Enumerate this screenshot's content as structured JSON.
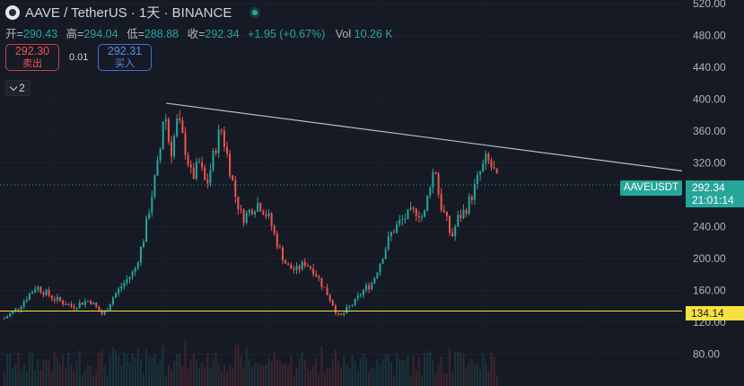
{
  "header": {
    "title": "AAVE / TetherUS · 1天 · BINANCE",
    "colors": {
      "up": "#26a69a",
      "down": "#ef5350",
      "background": "#161a25"
    }
  },
  "ohlc": {
    "open_label": "开=",
    "open": "290.43",
    "high_label": "高=",
    "high": "294.04",
    "low_label": "低=",
    "low": "288.88",
    "close_label": "收=",
    "close": "292.34",
    "change": "+1.95 (+0.67%)",
    "vol_label": "Vol",
    "vol": "10.26 K"
  },
  "trade": {
    "sell_price": "292.30",
    "sell_label": "卖出",
    "spread": "0.01",
    "buy_price": "292.31",
    "buy_label": "买入"
  },
  "indicator_toggle": {
    "count": "2"
  },
  "badges": {
    "symbol": "AAVEUSDT",
    "last_price": "292.34",
    "countdown": "21:01:14",
    "horizontal_line": "134.14"
  },
  "chart_data": {
    "type": "candlestick",
    "y_axis_ticks": [
      520,
      480,
      440,
      400,
      360,
      320,
      280,
      240,
      200,
      160,
      120,
      80
    ],
    "ylim": [
      70,
      530
    ],
    "last_price": 292.34,
    "horizontal_line": 134.14,
    "trendline": [
      {
        "x": 185,
        "price": 395
      },
      {
        "x": 760,
        "price": 310
      }
    ],
    "price_path": [
      {
        "x": 5,
        "price": 125
      },
      {
        "x": 20,
        "price": 138
      },
      {
        "x": 40,
        "price": 165
      },
      {
        "x": 60,
        "price": 150
      },
      {
        "x": 80,
        "price": 140
      },
      {
        "x": 100,
        "price": 148
      },
      {
        "x": 115,
        "price": 128
      },
      {
        "x": 125,
        "price": 150
      },
      {
        "x": 135,
        "price": 165
      },
      {
        "x": 150,
        "price": 185
      },
      {
        "x": 160,
        "price": 225
      },
      {
        "x": 170,
        "price": 285
      },
      {
        "x": 178,
        "price": 330
      },
      {
        "x": 183,
        "price": 392
      },
      {
        "x": 190,
        "price": 330
      },
      {
        "x": 198,
        "price": 375
      },
      {
        "x": 206,
        "price": 340
      },
      {
        "x": 214,
        "price": 300
      },
      {
        "x": 222,
        "price": 320
      },
      {
        "x": 230,
        "price": 290
      },
      {
        "x": 238,
        "price": 330
      },
      {
        "x": 246,
        "price": 365
      },
      {
        "x": 255,
        "price": 320
      },
      {
        "x": 262,
        "price": 280
      },
      {
        "x": 270,
        "price": 250
      },
      {
        "x": 278,
        "price": 260
      },
      {
        "x": 288,
        "price": 270
      },
      {
        "x": 300,
        "price": 250
      },
      {
        "x": 310,
        "price": 215
      },
      {
        "x": 320,
        "price": 190
      },
      {
        "x": 330,
        "price": 185
      },
      {
        "x": 340,
        "price": 195
      },
      {
        "x": 350,
        "price": 185
      },
      {
        "x": 360,
        "price": 165
      },
      {
        "x": 370,
        "price": 145
      },
      {
        "x": 378,
        "price": 125
      },
      {
        "x": 386,
        "price": 135
      },
      {
        "x": 395,
        "price": 145
      },
      {
        "x": 405,
        "price": 160
      },
      {
        "x": 415,
        "price": 170
      },
      {
        "x": 425,
        "price": 200
      },
      {
        "x": 435,
        "price": 230
      },
      {
        "x": 445,
        "price": 245
      },
      {
        "x": 455,
        "price": 255
      },
      {
        "x": 465,
        "price": 260
      },
      {
        "x": 472,
        "price": 250
      },
      {
        "x": 480,
        "price": 300
      },
      {
        "x": 485,
        "price": 315
      },
      {
        "x": 490,
        "price": 270
      },
      {
        "x": 497,
        "price": 250
      },
      {
        "x": 503,
        "price": 225
      },
      {
        "x": 510,
        "price": 250
      },
      {
        "x": 518,
        "price": 260
      },
      {
        "x": 526,
        "price": 280
      },
      {
        "x": 534,
        "price": 305
      },
      {
        "x": 542,
        "price": 325
      },
      {
        "x": 550,
        "price": 310
      },
      {
        "x": 556,
        "price": 292
      }
    ]
  }
}
